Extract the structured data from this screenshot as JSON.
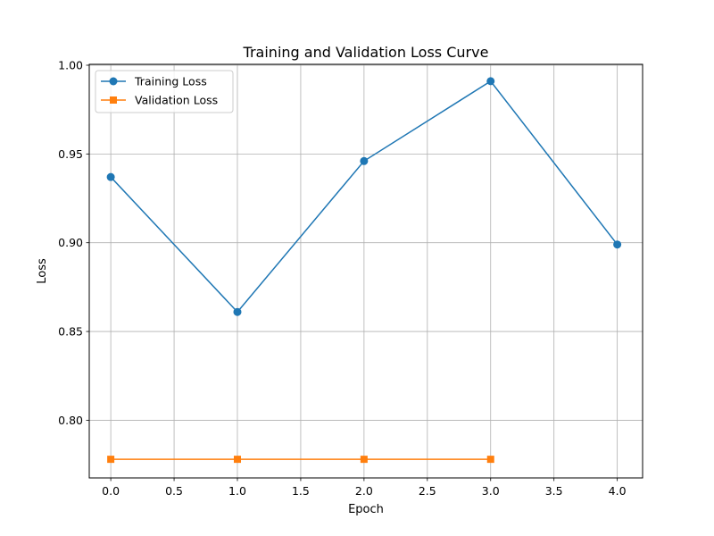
{
  "chart_data": {
    "type": "line",
    "title": "Training and Validation Loss Curve",
    "xlabel": "Epoch",
    "ylabel": "Loss",
    "xlim": [
      -0.17,
      4.2
    ],
    "ylim": [
      0.7675,
      1.0005
    ],
    "xticks": [
      0.0,
      0.5,
      1.0,
      1.5,
      2.0,
      2.5,
      3.0,
      3.5,
      4.0
    ],
    "xtick_labels": [
      "0.0",
      "0.5",
      "1.0",
      "1.5",
      "2.0",
      "2.5",
      "3.0",
      "3.5",
      "4.0"
    ],
    "yticks": [
      0.8,
      0.85,
      0.9,
      0.95,
      1.0
    ],
    "ytick_labels": [
      "0.80",
      "0.85",
      "0.90",
      "0.95",
      "1.00"
    ],
    "grid": true,
    "legend_position": "upper-left",
    "series": [
      {
        "name": "Training Loss",
        "color": "#1f77b4",
        "marker": "circle",
        "x": [
          0,
          1,
          2,
          3,
          4
        ],
        "y": [
          0.937,
          0.861,
          0.946,
          0.991,
          0.899
        ]
      },
      {
        "name": "Validation Loss",
        "color": "#ff7f0e",
        "marker": "square",
        "x": [
          0,
          1,
          2,
          3
        ],
        "y": [
          0.778,
          0.778,
          0.778,
          0.778
        ]
      }
    ]
  }
}
